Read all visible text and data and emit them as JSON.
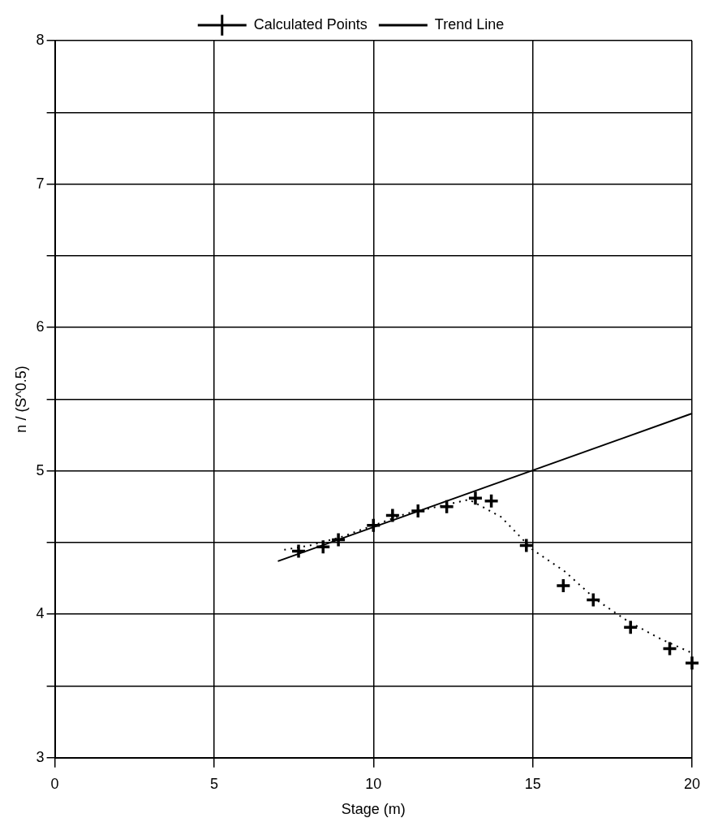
{
  "chart_data": {
    "type": "scatter",
    "xlabel": "Stage (m)",
    "ylabel": "n / (S^0.5)",
    "xlim": [
      0,
      20
    ],
    "ylim": [
      3,
      8
    ],
    "xticks": [
      0,
      5,
      10,
      15,
      20
    ],
    "yticks": [
      3,
      {
        "value": 3.5,
        "label": null
      },
      4,
      {
        "value": 4.5,
        "label": null
      },
      5,
      {
        "value": 5.5,
        "label": null
      },
      6,
      {
        "value": 6.5,
        "label": null
      },
      7,
      {
        "value": 7.5,
        "label": null
      },
      8
    ],
    "grid": true,
    "legend": "top",
    "series": [
      {
        "name": "Calculated Points",
        "marker": "cross",
        "color": "#000000",
        "x": [
          7.65,
          8.42,
          8.9,
          10.0,
          10.6,
          11.4,
          12.3,
          13.2,
          13.7,
          14.8,
          15.96,
          16.9,
          18.07,
          19.3,
          20.0
        ],
        "values": [
          4.44,
          4.47,
          4.52,
          4.62,
          4.69,
          4.72,
          4.75,
          4.81,
          4.79,
          4.48,
          4.2,
          4.1,
          3.91,
          3.76,
          3.66
        ]
      },
      {
        "name": "Trend Line",
        "type": "line",
        "marker": "none",
        "line_style": "solid",
        "color": "#000000",
        "x": [
          7,
          20
        ],
        "values": [
          4.37,
          5.4
        ]
      },
      {
        "type": "line",
        "marker": "none",
        "line_style": "dotted",
        "color": "#000000",
        "x": [
          7.2,
          8,
          9,
          10,
          11,
          12,
          13,
          14,
          15,
          16,
          17,
          18,
          19,
          20
        ],
        "values": [
          4.45,
          4.48,
          4.54,
          4.62,
          4.7,
          4.75,
          4.8,
          4.68,
          4.45,
          4.3,
          4.1,
          3.95,
          3.83,
          3.73
        ]
      }
    ]
  }
}
